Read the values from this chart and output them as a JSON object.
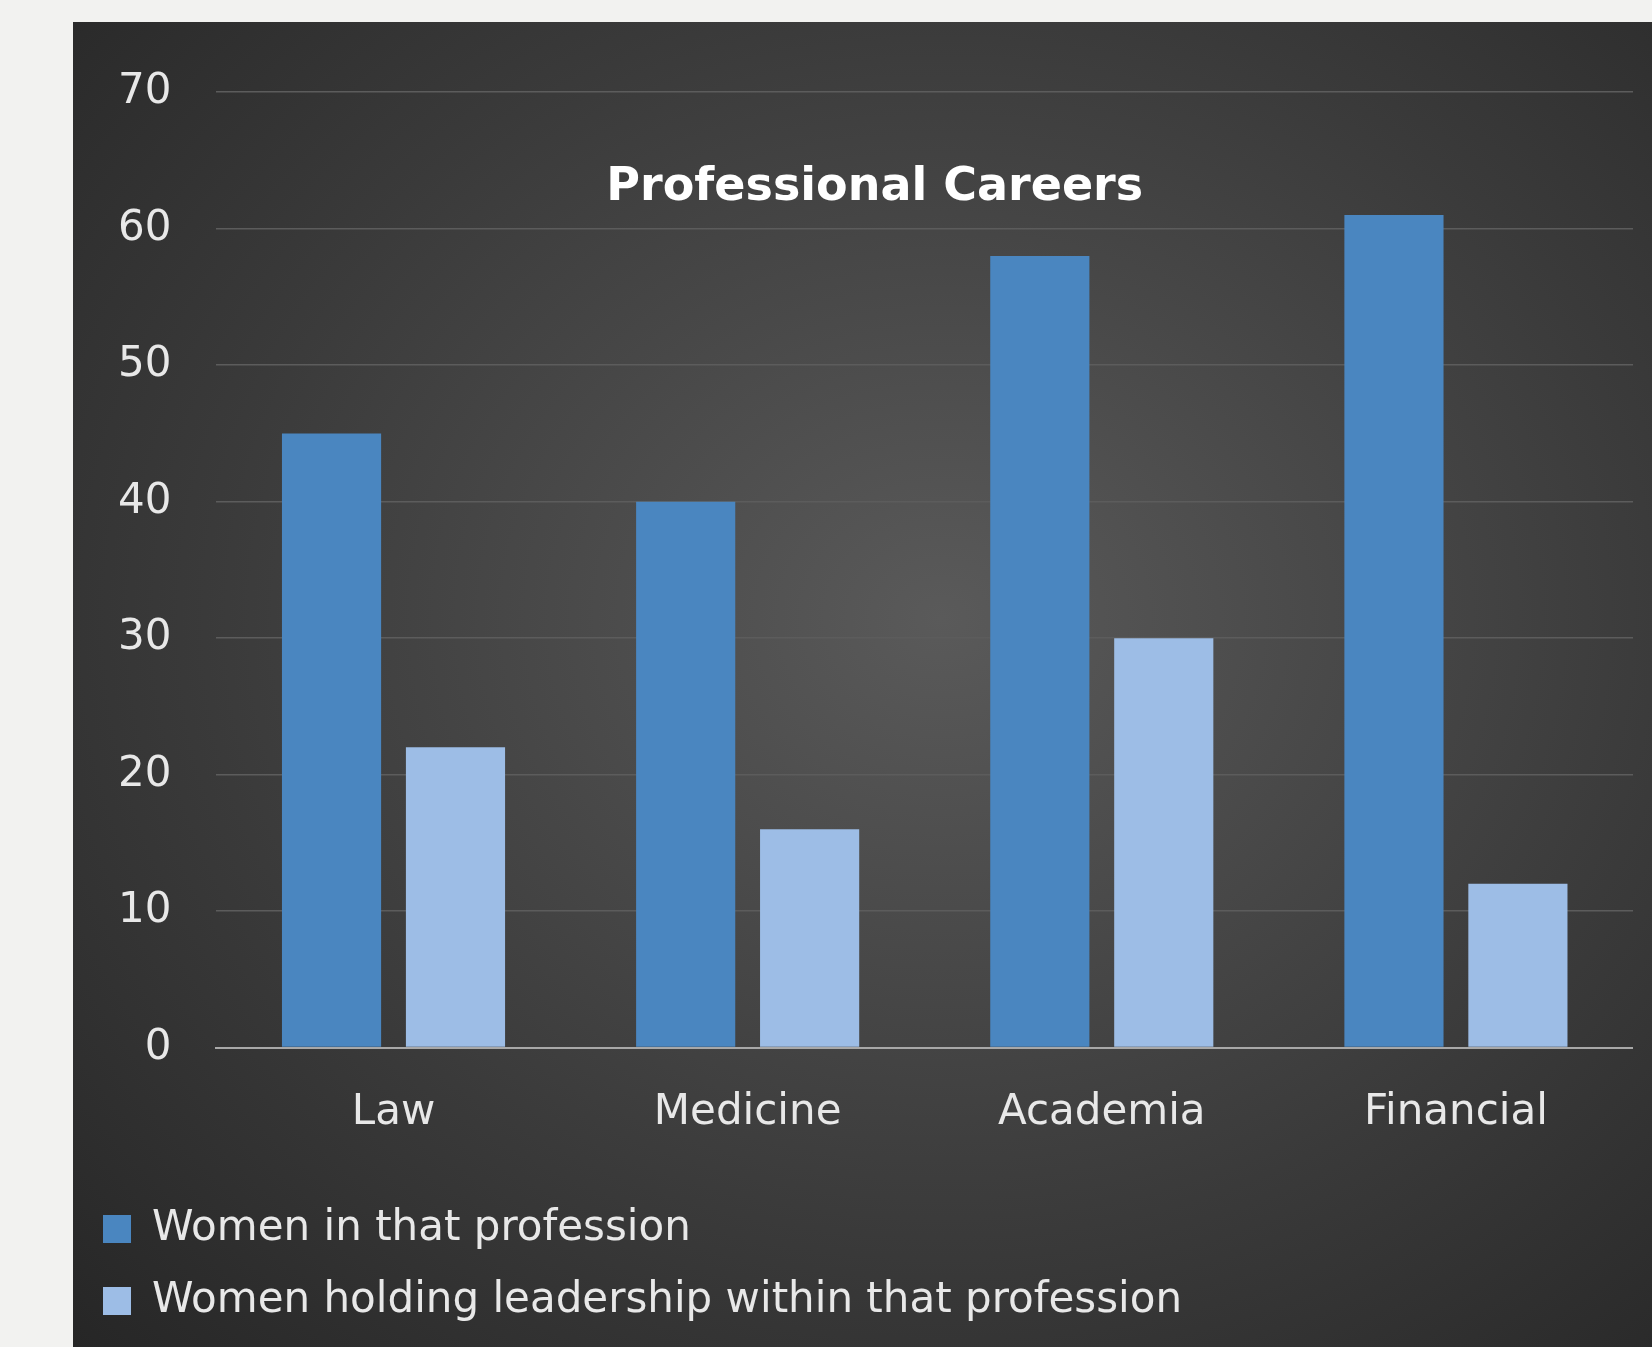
{
  "chart_data": {
    "type": "bar",
    "title": "Professional Careers",
    "categories": [
      "Law",
      "Medicine",
      "Academia",
      "Financial"
    ],
    "series": [
      {
        "name": "Women in that profession",
        "color": "#4a86c0",
        "values": [
          45,
          40,
          58,
          61
        ]
      },
      {
        "name": "Women holding leadership within that profession",
        "color": "#9dbde6",
        "values": [
          22,
          16,
          30,
          12
        ]
      }
    ],
    "ylim": [
      0,
      70
    ],
    "yticks": [
      0,
      10,
      20,
      30,
      40,
      50,
      60,
      70
    ],
    "grid": "y",
    "legend": "bottom"
  }
}
